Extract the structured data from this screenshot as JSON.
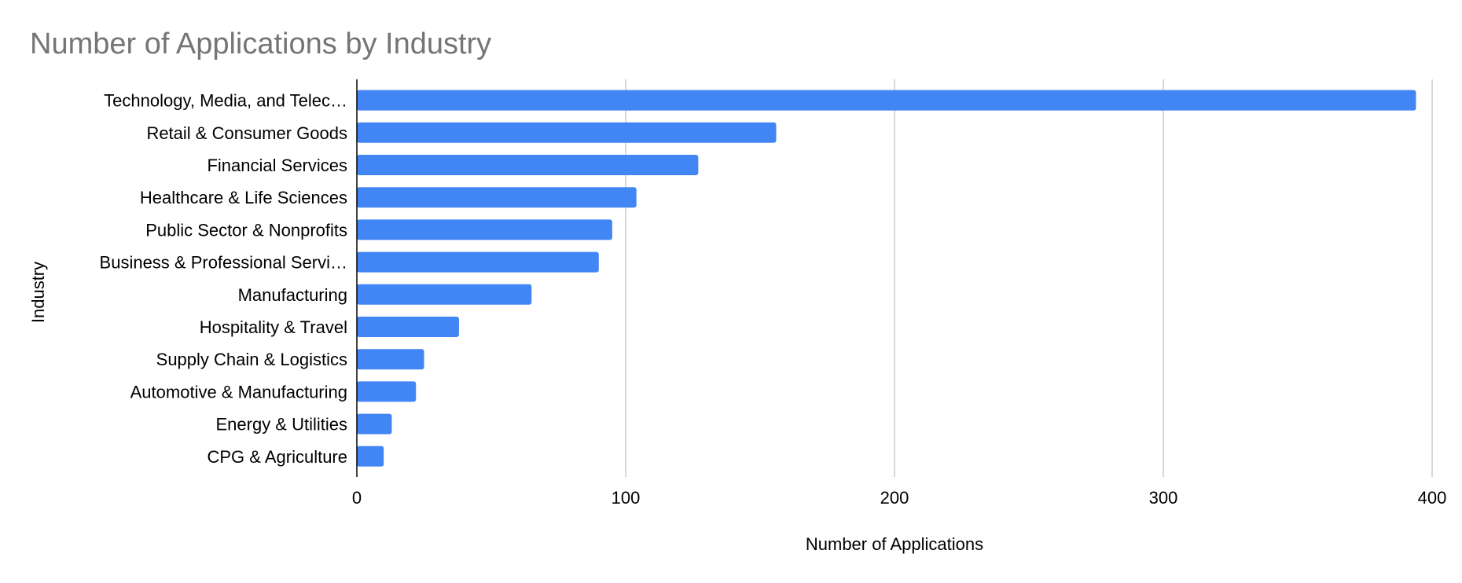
{
  "chart_data": {
    "type": "bar",
    "orientation": "horizontal",
    "title": "Number of Applications by Industry",
    "xlabel": "Number of Applications",
    "ylabel": "Industry",
    "categories": [
      "Technology, Media, and Telec…",
      "Retail & Consumer Goods",
      "Financial Services",
      "Healthcare & Life Sciences",
      "Public Sector & Nonprofits",
      "Business & Professional Servi…",
      "Manufacturing",
      "Hospitality & Travel",
      "Supply Chain & Logistics",
      "Automotive & Manufacturing",
      "Energy & Utilities",
      "CPG & Agriculture"
    ],
    "values": [
      394,
      156,
      127,
      104,
      95,
      90,
      65,
      38,
      25,
      22,
      13,
      10
    ],
    "xlim": [
      0,
      400
    ],
    "xticks": [
      0,
      100,
      200,
      300,
      400
    ],
    "grid": true,
    "legend": "none",
    "colors": {
      "bar": "#4285f4",
      "grid": "#cccccc",
      "axis": "#000000",
      "title": "#757575"
    }
  }
}
